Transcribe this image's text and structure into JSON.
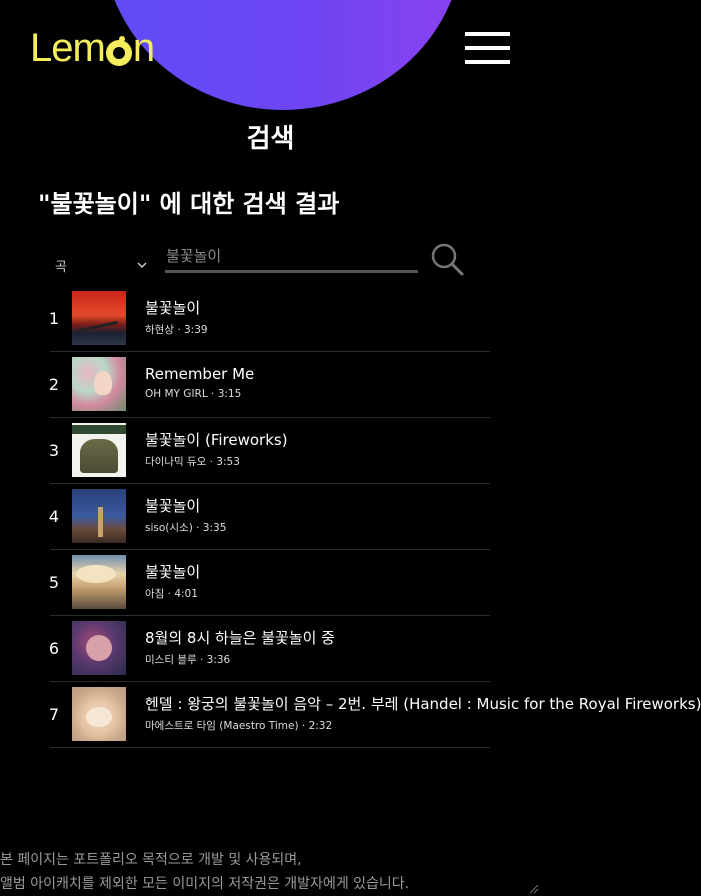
{
  "brand": {
    "logo_text_before": "Lem",
    "logo_text_after": "n"
  },
  "header": {
    "menu_icon": "hamburger-menu-icon"
  },
  "page": {
    "title": "검색"
  },
  "search": {
    "heading": "\"불꽃놀이\" 에 대한 검색 결과",
    "category": "곡",
    "category_icon": "chevron-down-icon",
    "query": "",
    "placeholder": "불꽃놀이",
    "button_icon": "search-icon"
  },
  "results": [
    {
      "rank": "1",
      "title": "불꽃놀이",
      "meta": "하현상 · 3:39"
    },
    {
      "rank": "2",
      "title": "Remember Me",
      "meta": "OH MY GIRL · 3:15"
    },
    {
      "rank": "3",
      "title": "불꽃놀이 (Fireworks)",
      "meta": "다이나믹 듀오 · 3:53"
    },
    {
      "rank": "4",
      "title": "불꽃놀이",
      "meta": "siso(시소) · 3:35"
    },
    {
      "rank": "5",
      "title": "불꽃놀이",
      "meta": "아침 · 4:01"
    },
    {
      "rank": "6",
      "title": "8월의 8시 하늘은 불꽃놀이 중",
      "meta": "미스티 블루 · 3:36"
    },
    {
      "rank": "7",
      "title": "헨델 : 왕궁의 불꽃놀이 음악 – 2번. 부레 (Handel : Music for the Royal Fireworks)",
      "meta": "마에스트로 타임 (Maestro Time) · 2:32"
    }
  ],
  "footer": {
    "line1": "본 페이지는 포트폴리오 목적으로 개발 및 사용되며,",
    "line2": "앨범 아이캐치를 제외한 모든 이미지의 저작권은 개발자에게 있습니다."
  },
  "colors": {
    "background": "#000000",
    "brand": "#f4ee5c",
    "accent": "#6a48f4"
  }
}
